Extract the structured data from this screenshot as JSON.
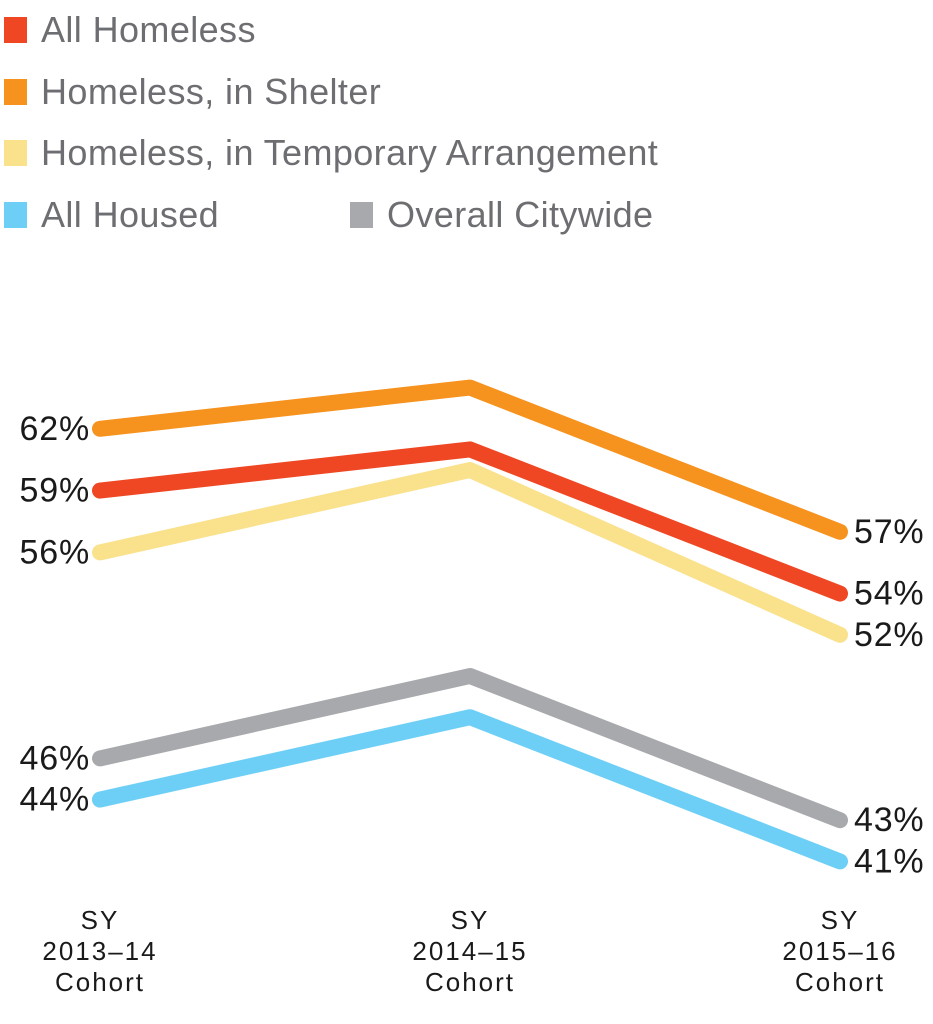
{
  "legend": {
    "text_color": "#6D6E71",
    "items": [
      {
        "label": "All Homeless",
        "color": "#EF4723"
      },
      {
        "label": "Homeless, in Shelter",
        "color": "#F6921E"
      },
      {
        "label": "Homeless, in Temporary Arrangement",
        "color": "#FAE18C"
      },
      {
        "label": "All Housed",
        "color": "#6DCFF6"
      },
      {
        "label": "Overall Citywide",
        "color": "#A7A9AC"
      }
    ]
  },
  "chart_data": {
    "type": "line",
    "categories": [
      "SY 2013–14 Cohort",
      "SY 2014–15 Cohort",
      "SY 2015–16 Cohort"
    ],
    "x_tick_lines": [
      [
        "SY",
        "2013–14",
        "Cohort"
      ],
      [
        "SY",
        "2014–15",
        "Cohort"
      ],
      [
        "SY",
        "2015–16",
        "Cohort"
      ]
    ],
    "series": [
      {
        "name": "Homeless, in Shelter",
        "color": "#F6921E",
        "values": [
          62,
          64,
          57
        ],
        "point_labels": [
          "62%",
          "",
          "57%"
        ]
      },
      {
        "name": "All Homeless",
        "color": "#EF4723",
        "values": [
          59,
          61,
          54
        ],
        "point_labels": [
          "59%",
          "",
          "54%"
        ]
      },
      {
        "name": "Homeless, in Temporary Arrangement",
        "color": "#FAE18C",
        "values": [
          56,
          60,
          52
        ],
        "point_labels": [
          "56%",
          "",
          "52%"
        ]
      },
      {
        "name": "Overall Citywide",
        "color": "#A7A9AC",
        "values": [
          46,
          50,
          43
        ],
        "point_labels": [
          "46%",
          "",
          "43%"
        ]
      },
      {
        "name": "All Housed",
        "color": "#6DCFF6",
        "values": [
          44,
          48,
          41
        ],
        "point_labels": [
          "44%",
          "",
          "41%"
        ]
      }
    ],
    "middle_values_estimated": true,
    "title": "",
    "xlabel": "",
    "ylabel": "",
    "ylim": [
      38,
      68
    ],
    "grid": false,
    "legend_position": "top-left",
    "label_color": "#1A1A1A"
  }
}
